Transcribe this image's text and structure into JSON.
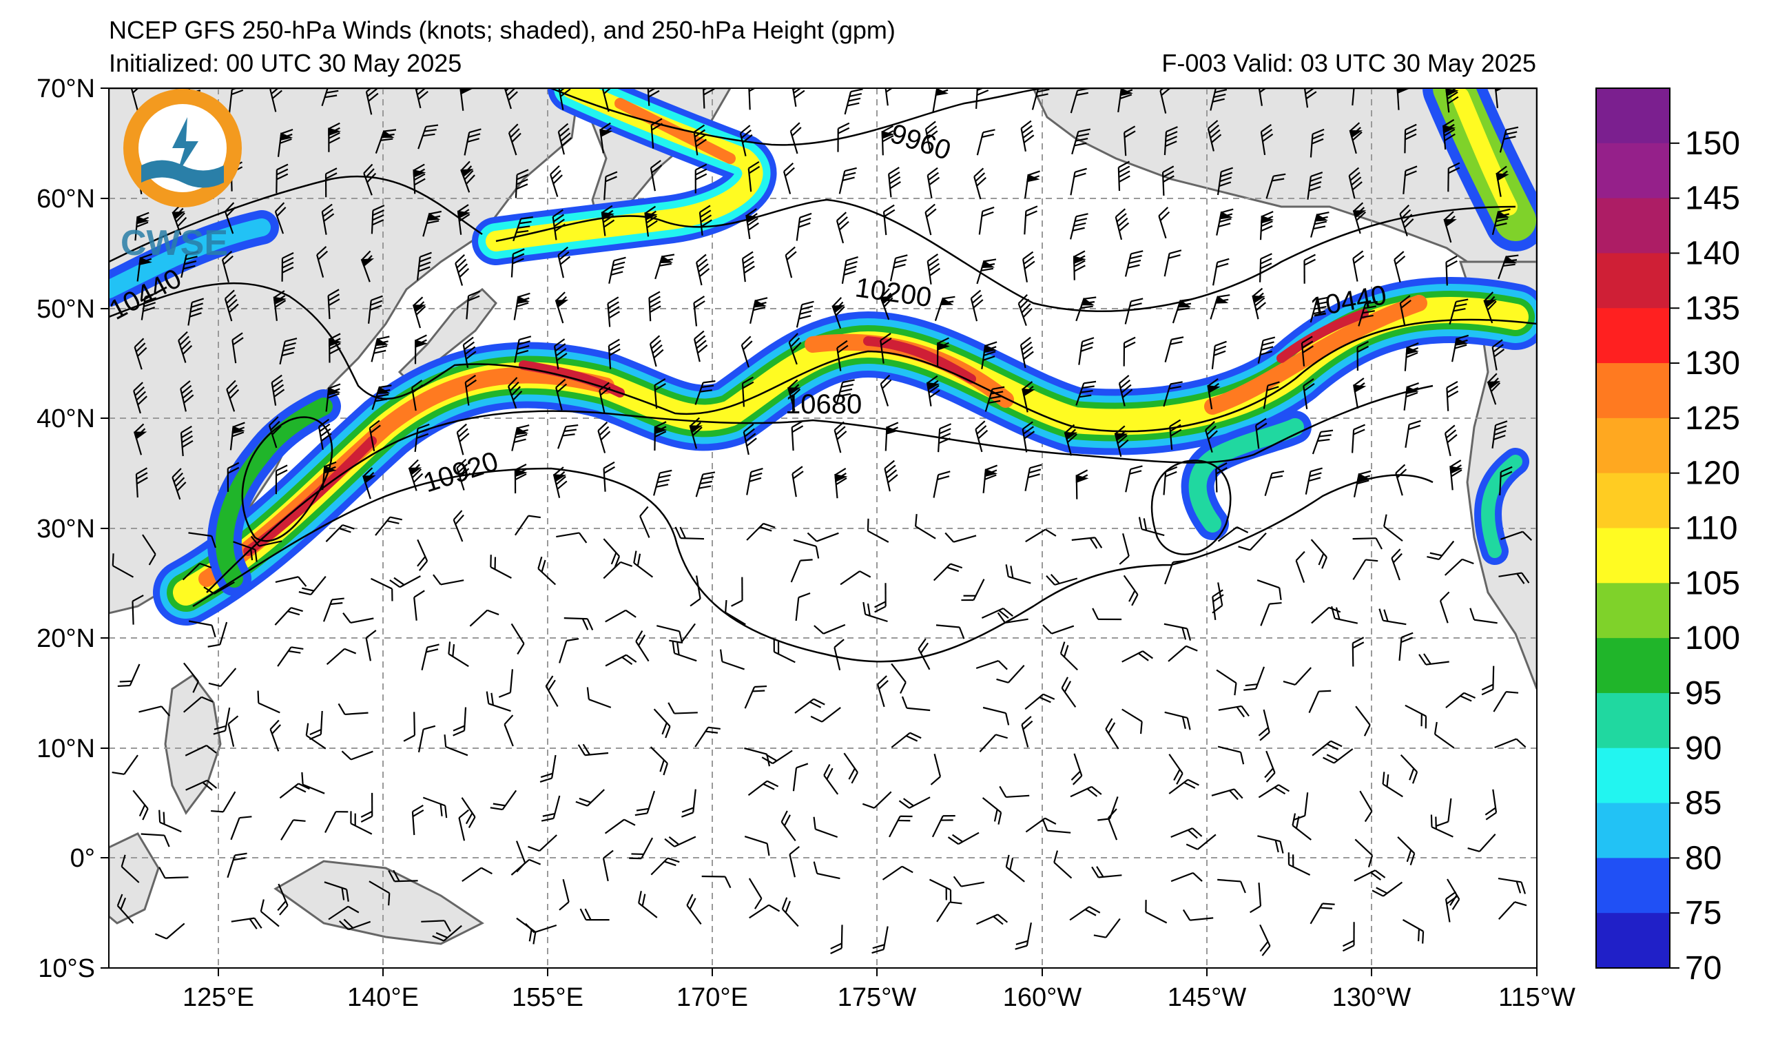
{
  "header": {
    "title": "NCEP GFS 250-hPa Winds (knots; shaded), and 250-hPa Height (gpm)",
    "initialized": "Initialized: 00 UTC 30 May 2025",
    "valid": "F-003  Valid: 03 UTC 30 May 2025"
  },
  "axes": {
    "lat_labels": [
      "70°N",
      "60°N",
      "50°N",
      "40°N",
      "30°N",
      "20°N",
      "10°N",
      "0°",
      "10°S"
    ],
    "lon_labels": [
      "125°E",
      "140°E",
      "155°E",
      "170°E",
      "175°W",
      "160°W",
      "145°W",
      "130°W",
      "115°W"
    ]
  },
  "contour_labels": [
    "9960",
    "10200",
    "10440",
    "10680",
    "10920",
    "10440"
  ],
  "logo": {
    "text": "CWSE"
  },
  "colorbar": {
    "labels": [
      "150",
      "145",
      "140",
      "135",
      "130",
      "125",
      "120",
      "110",
      "105",
      "100",
      "95",
      "90",
      "85",
      "80",
      "75",
      "70"
    ],
    "colors": [
      "#7b1f8f",
      "#95208a",
      "#ad1d65",
      "#cf1f36",
      "#ff2020",
      "#ff7a20",
      "#ffa820",
      "#ffcc22",
      "#fffb22",
      "#7fd22a",
      "#20b52a",
      "#20d8a0",
      "#22f5f0",
      "#22c2f5",
      "#2050f5",
      "#2020c8"
    ]
  },
  "colors": {
    "land": "#e3e3e3",
    "coast": "#666666",
    "grid": "#999999"
  }
}
